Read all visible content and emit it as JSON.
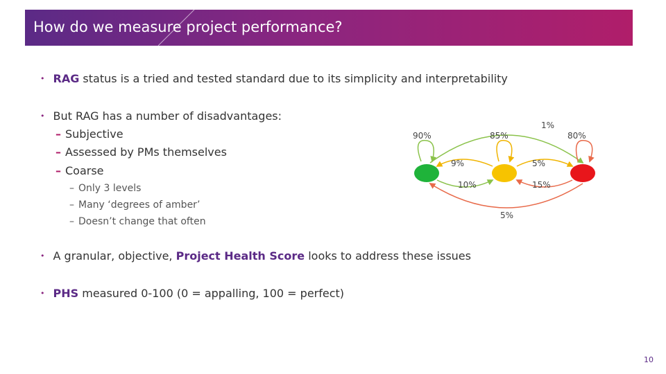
{
  "slide": {
    "title": "How do we measure project performance?",
    "page_number": "10"
  },
  "bullets": {
    "b1": {
      "highlight": "RAG",
      "text": " status is a tried and tested standard due to its simplicity and interpretability"
    },
    "b2": {
      "text": "But RAG has a number of disadvantages:"
    },
    "b2_subs": [
      "Subjective",
      "Assessed by PMs themselves",
      "Coarse"
    ],
    "b2_subsubs": [
      "Only 3 levels",
      "Many ‘degrees of amber’",
      "Doesn’t change that often"
    ],
    "b3": {
      "prefix": "A granular, objective, ",
      "highlight": "Project Health Score",
      "suffix": " looks to address these issues"
    },
    "b4": {
      "highlight": "PHS",
      "text": " measured 0-100 (0 = appalling, 100 = perfect)"
    }
  },
  "diagram": {
    "states": [
      {
        "name": "green",
        "color": "#1fb33a"
      },
      {
        "name": "amber",
        "color": "#f7c300"
      },
      {
        "name": "red",
        "color": "#e8161b"
      }
    ],
    "labels": {
      "green_self": "90%",
      "amber_self": "85%",
      "red_self": "80%",
      "green_to_red": "1%",
      "amber_to_green": "9%",
      "green_to_amber": "10%",
      "amber_to_red": "5%",
      "red_to_amber": "15%",
      "red_to_green": "5%"
    },
    "arc_colors": {
      "green_outer": "#8ac24a",
      "red_outer": "#e86a4a",
      "amber": "#f0b400"
    }
  }
}
